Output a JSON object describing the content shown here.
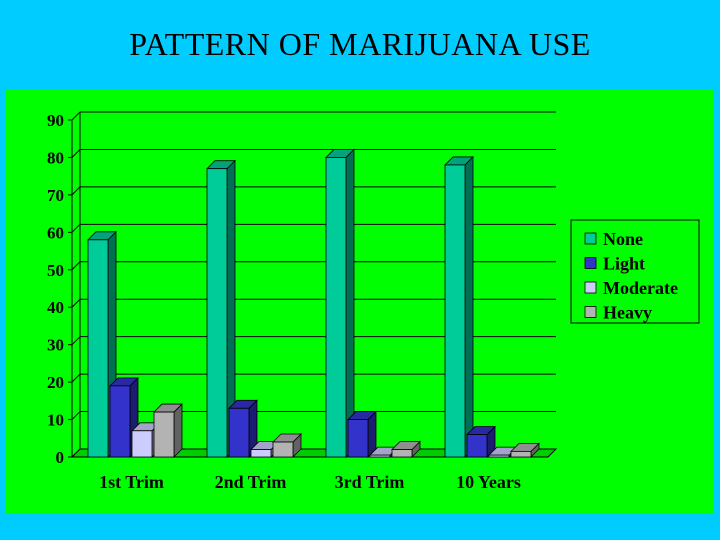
{
  "slide": {
    "title": "PATTERN OF MARIJUANA USE",
    "background": "#00ccff",
    "plot_background": "#00ff00"
  },
  "chart_data": {
    "type": "bar",
    "style": "3d-clustered-column",
    "title": "PATTERN OF MARIJUANA USE",
    "xlabel": "",
    "ylabel": "",
    "categories": [
      "1st Trim",
      "2nd Trim",
      "3rd Trim",
      "10 Years"
    ],
    "ylim": [
      0,
      90
    ],
    "yticks": [
      0,
      10,
      20,
      30,
      40,
      50,
      60,
      70,
      80,
      90
    ],
    "grid": true,
    "legend_position": "right",
    "series": [
      {
        "name": "None",
        "color": "#00cc99",
        "values": [
          58,
          77,
          80,
          78
        ]
      },
      {
        "name": "Light",
        "color": "#3333cc",
        "values": [
          19,
          13,
          10,
          6
        ]
      },
      {
        "name": "Moderate",
        "color": "#ccccff",
        "values": [
          7,
          2,
          0.5,
          0.5
        ]
      },
      {
        "name": "Heavy",
        "color": "#b3b3b3",
        "values": [
          12,
          4,
          2,
          1.5
        ]
      }
    ]
  }
}
